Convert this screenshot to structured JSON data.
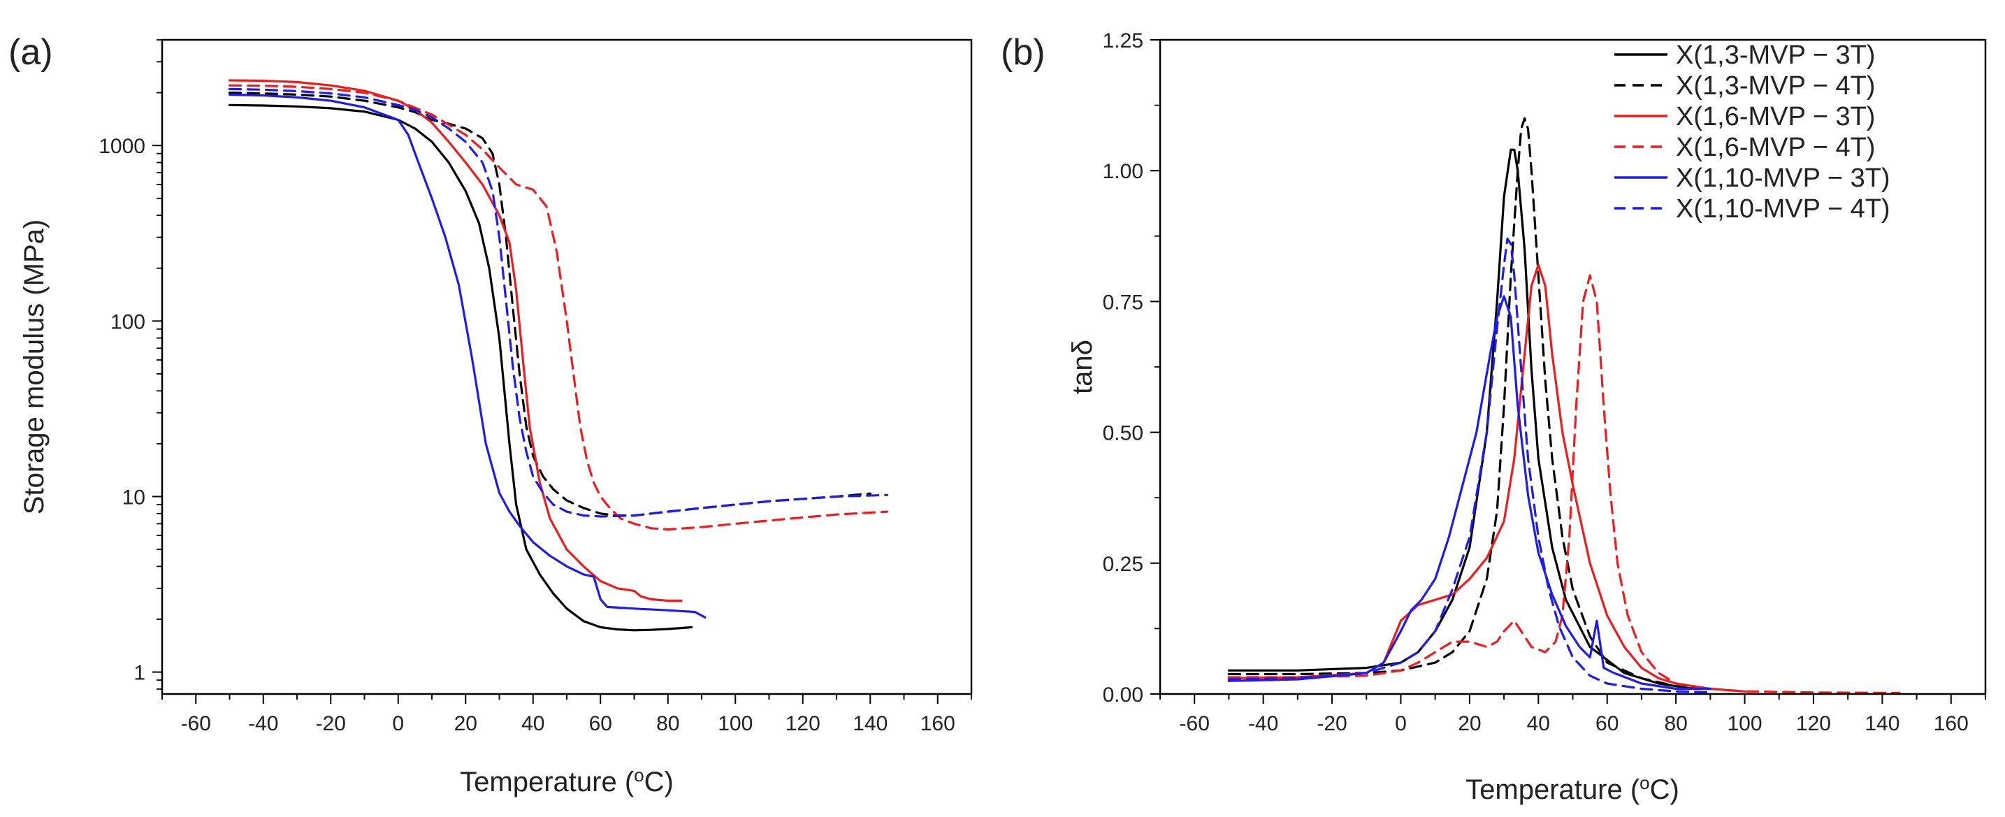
{
  "chart_data": [
    {
      "type": "line",
      "panel_label": "(a)",
      "xlabel": "Temperature (",
      "xlabel_sup": "o",
      "xlabel_end": "C)",
      "ylabel": "Storage modulus (MPa)",
      "yscale": "log",
      "xlim": [
        -70,
        170
      ],
      "ylim": [
        0.75,
        4000
      ],
      "xticks": [
        -60,
        -40,
        -20,
        0,
        20,
        40,
        60,
        80,
        100,
        120,
        140,
        160
      ],
      "xtick_labels": [
        "-60",
        "-40",
        "-20",
        "0",
        "20",
        "40",
        "60",
        "80",
        "100",
        "120",
        "140",
        "160"
      ],
      "yticks": [
        1,
        10,
        100,
        1000
      ],
      "ytick_labels": [
        "1",
        "10",
        "100",
        "1000"
      ],
      "series": [
        {
          "name": "X(1,3-MVP − 3T)",
          "color": "#000000",
          "dash": "solid",
          "x": [
            -50,
            -40,
            -30,
            -20,
            -10,
            0,
            5,
            10,
            15,
            20,
            24,
            27,
            30,
            33,
            35,
            38,
            42,
            46,
            50,
            55,
            60,
            65,
            70,
            75,
            80,
            87
          ],
          "y": [
            1700,
            1690,
            1670,
            1630,
            1560,
            1400,
            1250,
            1050,
            800,
            550,
            360,
            200,
            80,
            20,
            9,
            5,
            3.6,
            2.8,
            2.3,
            1.95,
            1.8,
            1.75,
            1.73,
            1.74,
            1.76,
            1.8
          ]
        },
        {
          "name": "X(1,3-MVP − 4T)",
          "color": "#000000",
          "dash": "dashed",
          "x": [
            -50,
            -40,
            -30,
            -20,
            -10,
            0,
            5,
            10,
            15,
            20,
            25,
            28,
            30,
            32,
            34,
            36,
            38,
            40,
            43,
            46,
            50,
            55,
            60,
            65,
            70,
            80,
            90,
            100,
            110,
            120,
            130,
            140
          ],
          "y": [
            2000,
            1980,
            1950,
            1900,
            1800,
            1650,
            1550,
            1400,
            1330,
            1250,
            1100,
            900,
            600,
            300,
            120,
            50,
            25,
            17,
            13,
            11,
            9.5,
            8.6,
            8.0,
            7.8,
            7.8,
            8.2,
            8.6,
            9.0,
            9.4,
            9.7,
            10.0,
            10.4
          ]
        },
        {
          "name": "X(1,6-MVP − 3T)",
          "color": "#ee1c1c",
          "dash": "solid",
          "x": [
            -50,
            -40,
            -30,
            -20,
            -10,
            0,
            5,
            10,
            15,
            20,
            25,
            30,
            33,
            35,
            37,
            39,
            42,
            45,
            50,
            55,
            60,
            65,
            70,
            72,
            75,
            80,
            84
          ],
          "y": [
            2350,
            2340,
            2300,
            2200,
            2050,
            1800,
            1600,
            1350,
            1050,
            800,
            600,
            400,
            280,
            150,
            60,
            25,
            12,
            7.5,
            5,
            4,
            3.3,
            3.0,
            2.9,
            2.7,
            2.6,
            2.55,
            2.55
          ]
        },
        {
          "name": "X(1,6-MVP − 4T)",
          "color": "#ee1c1c",
          "dash": "dashed",
          "x": [
            -50,
            -40,
            -30,
            -20,
            -10,
            0,
            10,
            20,
            25,
            30,
            35,
            40,
            44,
            47,
            50,
            52,
            54,
            56,
            58,
            60,
            63,
            66,
            70,
            75,
            80,
            90,
            100,
            110,
            120,
            130,
            145
          ],
          "y": [
            2200,
            2190,
            2160,
            2100,
            2000,
            1800,
            1500,
            1150,
            950,
            750,
            600,
            560,
            450,
            250,
            100,
            50,
            25,
            16,
            12,
            10,
            8.5,
            7.5,
            7.0,
            6.6,
            6.5,
            6.7,
            7.0,
            7.3,
            7.6,
            7.9,
            8.2
          ]
        },
        {
          "name": "X(1,10-MVP − 3T)",
          "color": "#1c1cf0",
          "dash": "solid",
          "x": [
            -50,
            -40,
            -30,
            -20,
            -10,
            0,
            3,
            6,
            10,
            14,
            18,
            22,
            26,
            30,
            33,
            36,
            40,
            45,
            50,
            55,
            58,
            60,
            62,
            70,
            80,
            88,
            91
          ],
          "y": [
            1950,
            1930,
            1880,
            1800,
            1650,
            1400,
            1150,
            800,
            500,
            300,
            160,
            60,
            20,
            10.5,
            8.2,
            6.8,
            5.5,
            4.6,
            4.0,
            3.6,
            3.5,
            2.6,
            2.35,
            2.3,
            2.25,
            2.2,
            2.05
          ]
        },
        {
          "name": "X(1,10-MVP − 4T)",
          "color": "#1c1cf0",
          "dash": "dashed",
          "x": [
            -50,
            -40,
            -30,
            -20,
            -10,
            0,
            5,
            10,
            15,
            20,
            25,
            28,
            30,
            32,
            34,
            36,
            38,
            40,
            43,
            46,
            50,
            55,
            60,
            70,
            80,
            90,
            100,
            110,
            120,
            130,
            145
          ],
          "y": [
            2100,
            2080,
            2040,
            1980,
            1880,
            1700,
            1600,
            1450,
            1250,
            1050,
            800,
            550,
            300,
            130,
            55,
            28,
            18,
            13,
            10.5,
            9.0,
            8.2,
            7.8,
            7.7,
            7.8,
            8.2,
            8.6,
            9.0,
            9.4,
            9.7,
            10.0,
            10.2
          ]
        }
      ]
    },
    {
      "type": "line",
      "panel_label": "(b)",
      "xlabel": "Temperature (",
      "xlabel_sup": "o",
      "xlabel_end": "C)",
      "ylabel": "tanδ",
      "yscale": "linear",
      "xlim": [
        -70,
        170
      ],
      "ylim": [
        0,
        1.25
      ],
      "xticks": [
        -60,
        -40,
        -20,
        0,
        20,
        40,
        60,
        80,
        100,
        120,
        140,
        160
      ],
      "xtick_labels": [
        "-60",
        "-40",
        "-20",
        "0",
        "20",
        "40",
        "60",
        "80",
        "100",
        "120",
        "140",
        "160"
      ],
      "yticks": [
        0,
        0.25,
        0.5,
        0.75,
        1.0,
        1.25
      ],
      "ytick_labels": [
        "0.00",
        "0.25",
        "0.50",
        "0.75",
        "1.00",
        "1.25"
      ],
      "legend_location": "top-right",
      "series": [
        {
          "name": "X(1,3-MVP − 3T)",
          "color": "#000000",
          "dash": "solid",
          "x": [
            -50,
            -30,
            -10,
            0,
            5,
            10,
            15,
            20,
            25,
            28,
            30,
            32,
            33,
            34,
            36,
            38,
            40,
            44,
            48,
            55,
            65,
            75,
            85,
            90
          ],
          "y": [
            0.045,
            0.045,
            0.05,
            0.06,
            0.08,
            0.12,
            0.18,
            0.28,
            0.5,
            0.75,
            0.95,
            1.04,
            1.04,
            1.0,
            0.85,
            0.62,
            0.45,
            0.28,
            0.18,
            0.09,
            0.04,
            0.02,
            0.01,
            0.01
          ]
        },
        {
          "name": "X(1,3-MVP − 4T)",
          "color": "#000000",
          "dash": "dashed",
          "x": [
            -50,
            -30,
            -10,
            0,
            10,
            15,
            20,
            25,
            28,
            30,
            32,
            34,
            35,
            36,
            37,
            38,
            40,
            42,
            44,
            47,
            50,
            55,
            60,
            70,
            80,
            90
          ],
          "y": [
            0.038,
            0.038,
            0.04,
            0.045,
            0.06,
            0.08,
            0.12,
            0.22,
            0.35,
            0.55,
            0.8,
            1.0,
            1.08,
            1.1,
            1.08,
            1.0,
            0.8,
            0.6,
            0.45,
            0.3,
            0.2,
            0.11,
            0.06,
            0.03,
            0.015,
            0.01
          ]
        },
        {
          "name": "X(1,6-MVP − 3T)",
          "color": "#ee1c1c",
          "dash": "solid",
          "x": [
            -50,
            -30,
            -10,
            -5,
            0,
            5,
            10,
            15,
            20,
            25,
            30,
            33,
            36,
            38,
            40,
            42,
            44,
            47,
            50,
            55,
            60,
            65,
            70,
            75,
            80,
            90,
            100
          ],
          "y": [
            0.03,
            0.032,
            0.04,
            0.06,
            0.14,
            0.17,
            0.18,
            0.19,
            0.22,
            0.26,
            0.33,
            0.45,
            0.65,
            0.78,
            0.82,
            0.78,
            0.65,
            0.5,
            0.4,
            0.25,
            0.15,
            0.09,
            0.05,
            0.03,
            0.02,
            0.01,
            0.005
          ]
        },
        {
          "name": "X(1,6-MVP − 4T)",
          "color": "#ee1c1c",
          "dash": "dashed",
          "x": [
            -50,
            -30,
            -10,
            0,
            5,
            10,
            15,
            20,
            25,
            28,
            30,
            33,
            35,
            38,
            42,
            45,
            47,
            49,
            51,
            53,
            55,
            57,
            59,
            61,
            63,
            66,
            70,
            75,
            80,
            90,
            100,
            120,
            145
          ],
          "y": [
            0.032,
            0.032,
            0.035,
            0.045,
            0.06,
            0.08,
            0.1,
            0.1,
            0.09,
            0.1,
            0.12,
            0.14,
            0.12,
            0.09,
            0.08,
            0.1,
            0.15,
            0.3,
            0.55,
            0.75,
            0.8,
            0.75,
            0.55,
            0.38,
            0.25,
            0.15,
            0.08,
            0.04,
            0.02,
            0.01,
            0.005,
            0.003,
            0.002
          ]
        },
        {
          "name": "X(1,10-MVP − 3T)",
          "color": "#1c1cf0",
          "dash": "solid",
          "x": [
            -50,
            -30,
            -10,
            -5,
            0,
            3,
            6,
            10,
            14,
            18,
            22,
            26,
            28,
            30,
            32,
            34,
            37,
            40,
            44,
            48,
            52,
            55,
            57,
            59,
            62,
            70,
            80,
            90
          ],
          "y": [
            0.025,
            0.028,
            0.04,
            0.06,
            0.12,
            0.16,
            0.18,
            0.22,
            0.3,
            0.4,
            0.5,
            0.65,
            0.72,
            0.76,
            0.72,
            0.55,
            0.38,
            0.27,
            0.19,
            0.13,
            0.09,
            0.07,
            0.14,
            0.05,
            0.04,
            0.02,
            0.01,
            0.01
          ]
        },
        {
          "name": "X(1,10-MVP − 4T)",
          "color": "#1c1cf0",
          "dash": "dashed",
          "x": [
            -50,
            -30,
            -10,
            0,
            5,
            10,
            15,
            20,
            25,
            28,
            30,
            31,
            32,
            33,
            35,
            37,
            40,
            43,
            46,
            50,
            55,
            60,
            70,
            80,
            90
          ],
          "y": [
            0.028,
            0.03,
            0.04,
            0.06,
            0.08,
            0.12,
            0.2,
            0.3,
            0.5,
            0.7,
            0.82,
            0.87,
            0.86,
            0.8,
            0.62,
            0.45,
            0.3,
            0.2,
            0.13,
            0.07,
            0.035,
            0.02,
            0.01,
            0.005,
            0.003
          ]
        }
      ]
    }
  ]
}
